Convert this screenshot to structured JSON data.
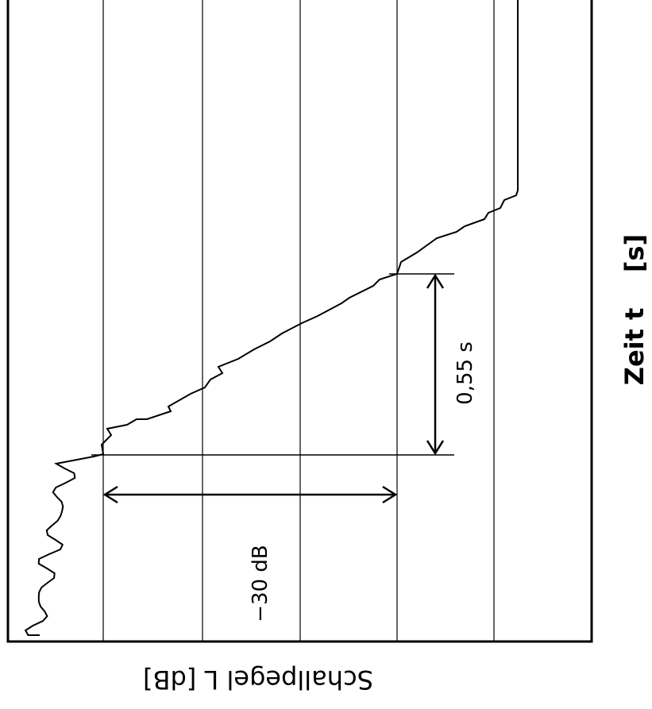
{
  "chart_data": {
    "type": "line",
    "xlabel": "Zeit t    [s]",
    "ylabel": "Schallpegel  L    [dB]",
    "annotations": [
      "−30 dB",
      "0,55 s"
    ],
    "grid": true
  }
}
